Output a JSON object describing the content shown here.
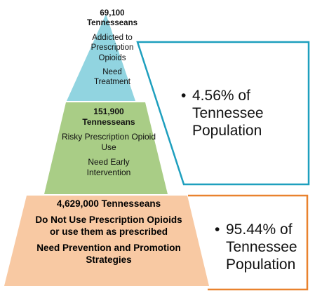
{
  "colors": {
    "top_tier": "#91d4e0",
    "middle_tier": "#a9cd86",
    "bottom_tier": "#f8c9a3",
    "top_callout_border": "#1e9fbe",
    "bottom_callout_border": "#e9822e"
  },
  "tiers": {
    "top": {
      "count": "69,100",
      "group": "Tennesseans",
      "description": "Addicted to Prescription Opioids",
      "need": "Need Treatment"
    },
    "middle": {
      "count": "151,900",
      "group": "Tennesseans",
      "description": "Risky Prescription Opioid Use",
      "need": "Need Early Intervention"
    },
    "bottom": {
      "heading": "4,629,000 Tennesseans",
      "description": "Do Not Use Prescription Opioids or use them as prescribed",
      "need": "Need Prevention and Promotion Strategies"
    }
  },
  "callouts": {
    "top": {
      "bullet": "•",
      "text": "4.56% of Tennessee Population"
    },
    "bottom": {
      "bullet": "•",
      "text": "95.44% of Tennessee Population"
    }
  }
}
